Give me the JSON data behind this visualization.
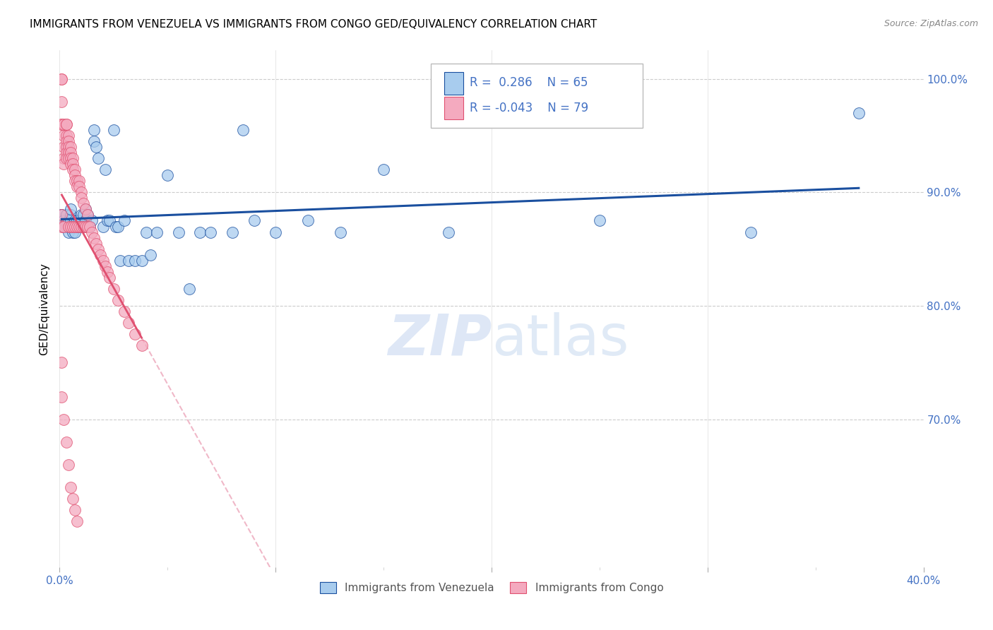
{
  "title": "IMMIGRANTS FROM VENEZUELA VS IMMIGRANTS FROM CONGO GED/EQUIVALENCY CORRELATION CHART",
  "source": "Source: ZipAtlas.com",
  "ylabel": "GED/Equivalency",
  "x_min": 0.0,
  "x_max": 0.4,
  "y_min": 0.57,
  "y_max": 1.025,
  "y_ticks_right": [
    0.7,
    0.8,
    0.9,
    1.0
  ],
  "y_tick_labels_right": [
    "70.0%",
    "80.0%",
    "90.0%",
    "100.0%"
  ],
  "R_venezuela": 0.286,
  "N_venezuela": 65,
  "R_congo": -0.043,
  "N_congo": 79,
  "color_venezuela": "#A8CCEE",
  "color_congo": "#F4AABF",
  "line_color_venezuela": "#1A4F9F",
  "line_color_congo": "#E05070",
  "line_color_congo_dashed": "#F0B8C8",
  "watermark_zip_color": "#C8D8F0",
  "watermark_atlas_color": "#A8C4E8",
  "legend_label_venezuela": "Immigrants from Venezuela",
  "legend_label_congo": "Immigrants from Congo",
  "venezuela_x": [
    0.001,
    0.001,
    0.002,
    0.002,
    0.003,
    0.003,
    0.003,
    0.004,
    0.004,
    0.004,
    0.005,
    0.005,
    0.005,
    0.006,
    0.006,
    0.007,
    0.007,
    0.008,
    0.008,
    0.009,
    0.009,
    0.01,
    0.01,
    0.011,
    0.011,
    0.012,
    0.012,
    0.013,
    0.014,
    0.015,
    0.016,
    0.016,
    0.017,
    0.018,
    0.02,
    0.021,
    0.022,
    0.023,
    0.025,
    0.026,
    0.027,
    0.028,
    0.03,
    0.032,
    0.035,
    0.038,
    0.04,
    0.042,
    0.045,
    0.05,
    0.055,
    0.06,
    0.065,
    0.07,
    0.08,
    0.085,
    0.09,
    0.1,
    0.115,
    0.13,
    0.15,
    0.18,
    0.25,
    0.32,
    0.37
  ],
  "venezuela_y": [
    0.88,
    0.88,
    0.87,
    0.875,
    0.87,
    0.875,
    0.88,
    0.865,
    0.87,
    0.875,
    0.875,
    0.88,
    0.885,
    0.865,
    0.87,
    0.865,
    0.875,
    0.87,
    0.875,
    0.87,
    0.875,
    0.875,
    0.88,
    0.87,
    0.88,
    0.875,
    0.885,
    0.88,
    0.87,
    0.875,
    0.955,
    0.945,
    0.94,
    0.93,
    0.87,
    0.92,
    0.875,
    0.875,
    0.955,
    0.87,
    0.87,
    0.84,
    0.875,
    0.84,
    0.84,
    0.84,
    0.865,
    0.845,
    0.865,
    0.915,
    0.865,
    0.815,
    0.865,
    0.865,
    0.865,
    0.955,
    0.875,
    0.865,
    0.875,
    0.865,
    0.92,
    0.865,
    0.875,
    0.865,
    0.97
  ],
  "congo_x": [
    0.001,
    0.001,
    0.001,
    0.001,
    0.001,
    0.001,
    0.001,
    0.002,
    0.002,
    0.002,
    0.002,
    0.002,
    0.002,
    0.003,
    0.003,
    0.003,
    0.003,
    0.003,
    0.003,
    0.003,
    0.004,
    0.004,
    0.004,
    0.004,
    0.004,
    0.004,
    0.005,
    0.005,
    0.005,
    0.005,
    0.005,
    0.006,
    0.006,
    0.006,
    0.006,
    0.007,
    0.007,
    0.007,
    0.007,
    0.008,
    0.008,
    0.008,
    0.009,
    0.009,
    0.009,
    0.01,
    0.01,
    0.01,
    0.011,
    0.011,
    0.012,
    0.012,
    0.013,
    0.013,
    0.014,
    0.015,
    0.016,
    0.017,
    0.018,
    0.019,
    0.02,
    0.021,
    0.022,
    0.023,
    0.025,
    0.027,
    0.03,
    0.032,
    0.035,
    0.038,
    0.001,
    0.001,
    0.002,
    0.003,
    0.004,
    0.005,
    0.006,
    0.007,
    0.008
  ],
  "congo_y": [
    1.0,
    1.0,
    0.98,
    0.96,
    0.96,
    0.88,
    0.87,
    0.96,
    0.95,
    0.94,
    0.93,
    0.925,
    0.87,
    0.96,
    0.96,
    0.95,
    0.945,
    0.94,
    0.935,
    0.93,
    0.95,
    0.945,
    0.94,
    0.935,
    0.93,
    0.87,
    0.94,
    0.935,
    0.93,
    0.925,
    0.87,
    0.93,
    0.925,
    0.92,
    0.87,
    0.92,
    0.915,
    0.91,
    0.87,
    0.91,
    0.905,
    0.87,
    0.91,
    0.905,
    0.87,
    0.9,
    0.895,
    0.87,
    0.89,
    0.87,
    0.885,
    0.87,
    0.88,
    0.87,
    0.87,
    0.865,
    0.86,
    0.855,
    0.85,
    0.845,
    0.84,
    0.835,
    0.83,
    0.825,
    0.815,
    0.805,
    0.795,
    0.785,
    0.775,
    0.765,
    0.75,
    0.72,
    0.7,
    0.68,
    0.66,
    0.64,
    0.63,
    0.62,
    0.61
  ]
}
